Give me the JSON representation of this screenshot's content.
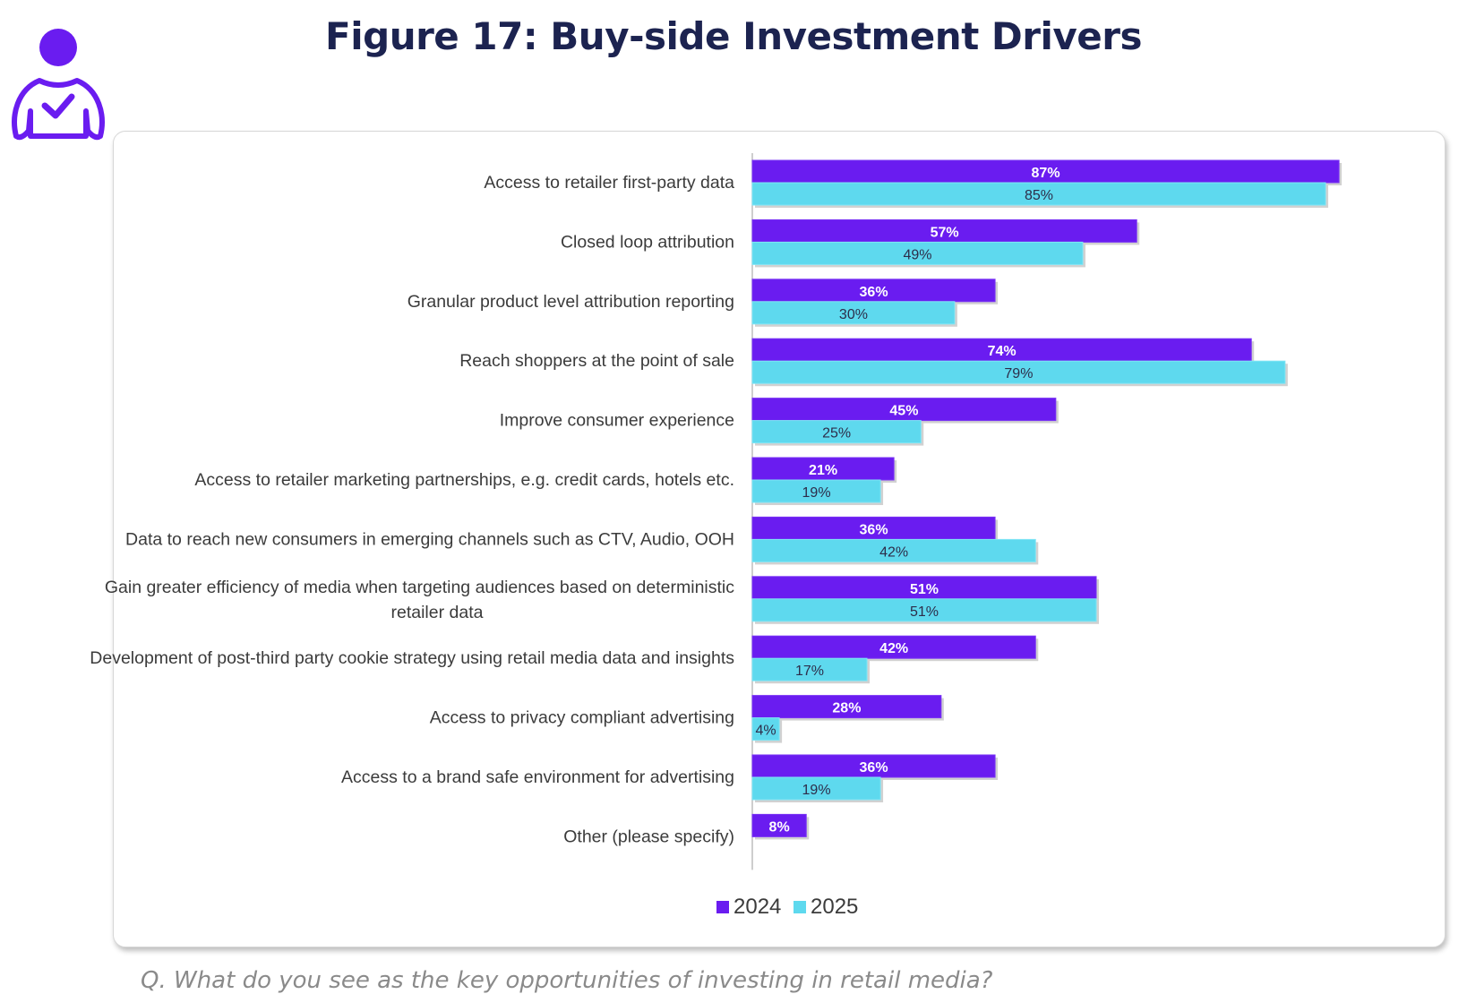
{
  "title": "Figure 17: Buy-side Investment Drivers",
  "question": "Q. What do you see as the key opportunities of investing in retail media?",
  "colors": {
    "series_2024": "#6a1cf0",
    "series_2025": "#5ed9ee",
    "title": "#1c2350",
    "icon": "#6a1cf0"
  },
  "icon": "person-check-icon",
  "chart_data": {
    "type": "bar",
    "orientation": "horizontal",
    "title": "Figure 17: Buy-side Investment Drivers",
    "xlabel": "",
    "ylabel": "",
    "xlim": [
      0,
      100
    ],
    "grid": false,
    "legend": "bottom-center",
    "value_format": "percent",
    "categories": [
      [
        "Access to retailer first-party data"
      ],
      [
        "Closed loop attribution"
      ],
      [
        "Granular product level attribution reporting"
      ],
      [
        "Reach shoppers at the point of sale"
      ],
      [
        "Improve consumer experience"
      ],
      [
        "Access to retailer marketing partnerships, e.g. credit cards, hotels etc."
      ],
      [
        "Data to reach new consumers in emerging channels such as CTV, Audio, OOH"
      ],
      [
        "Gain greater efficiency of media when targeting audiences based on deterministic",
        "retailer data"
      ],
      [
        "Development of post-third party cookie strategy using retail media data and insights"
      ],
      [
        "Access to privacy compliant advertising"
      ],
      [
        "Access to a brand safe environment for advertising"
      ],
      [
        "Other (please specify)"
      ]
    ],
    "series": [
      {
        "name": "2024",
        "color": "#6a1cf0",
        "values": [
          87,
          57,
          36,
          74,
          45,
          21,
          36,
          51,
          42,
          28,
          36,
          8
        ]
      },
      {
        "name": "2025",
        "color": "#5ed9ee",
        "values": [
          85,
          49,
          30,
          79,
          25,
          19,
          42,
          51,
          17,
          4,
          19,
          null
        ]
      }
    ]
  }
}
